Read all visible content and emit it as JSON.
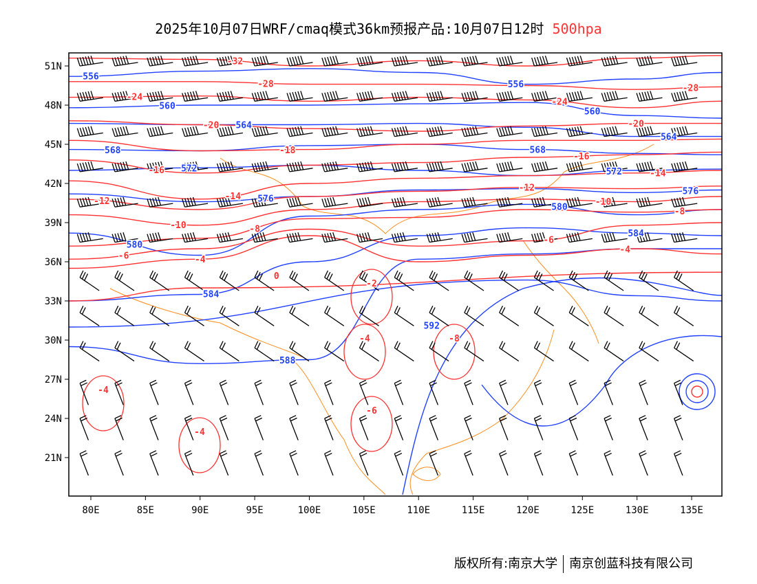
{
  "title": {
    "text": "2025年10月07日WRF/cmaq模式36km预报产品:10月07日12时",
    "level": "500hpa"
  },
  "footer": {
    "copyright": "版权所有:南京大学",
    "company": "南京创蓝科技有限公司"
  },
  "colors": {
    "height": "#2040ff",
    "temp": "#ff3030",
    "border": "#ff8c1a",
    "wind": "#000000"
  },
  "axes": {
    "lon_range": [
      78,
      138
    ],
    "lat_range": [
      18,
      52
    ],
    "lat_ticks": [
      "51N",
      "48N",
      "45N",
      "42N",
      "39N",
      "36N",
      "33N",
      "30N",
      "27N",
      "24N",
      "21N"
    ],
    "lat_values": [
      51,
      48,
      45,
      42,
      39,
      36,
      33,
      30,
      27,
      24,
      21
    ],
    "lon_ticks": [
      "80E",
      "85E",
      "90E",
      "95E",
      "100E",
      "105E",
      "110E",
      "115E",
      "120E",
      "125E",
      "130E",
      "135E"
    ],
    "lon_values": [
      80,
      85,
      90,
      95,
      100,
      105,
      110,
      115,
      120,
      125,
      130,
      135
    ]
  },
  "height_contours": {
    "lons": [
      78,
      90,
      100,
      110,
      120,
      130,
      138
    ],
    "lines": [
      {
        "value": "556",
        "lats": [
          50.2,
          50.6,
          50.8,
          50.5,
          49.6,
          50.0,
          50.5
        ]
      },
      {
        "value": "560",
        "lats": [
          47.8,
          48.0,
          48.0,
          48.1,
          48.2,
          47.2,
          47.0
        ]
      },
      {
        "value": "564",
        "lats": [
          46.6,
          46.5,
          46.5,
          46.6,
          46.3,
          45.6,
          45.6
        ]
      },
      {
        "value": "568",
        "lats": [
          44.6,
          44.5,
          44.9,
          45.0,
          44.6,
          44.3,
          44.2
        ]
      },
      {
        "value": "572",
        "lats": [
          43.0,
          43.2,
          43.4,
          43.0,
          42.6,
          43.0,
          43.1
        ]
      },
      {
        "value": "576",
        "lats": [
          41.2,
          40.6,
          41.0,
          41.5,
          41.6,
          41.3,
          41.5
        ]
      },
      {
        "value": "580",
        "lats": [
          38.2,
          36.5,
          39.5,
          40.0,
          40.4,
          39.6,
          40.0
        ]
      },
      {
        "value": "584",
        "lats": [
          33.0,
          33.5,
          36.0,
          38.0,
          38.6,
          38.2,
          38.0
        ]
      },
      {
        "value": "588",
        "lats": [
          29.5,
          28.2,
          28.5,
          36.2,
          36.6,
          37.0,
          37.0
        ]
      },
      {
        "value": "592",
        "lats": [
          null,
          null,
          null,
          31.0,
          34.6,
          33.4,
          33.0
        ]
      }
    ]
  },
  "temp_contours": {
    "lons": [
      78,
      90,
      100,
      110,
      120,
      130,
      138
    ],
    "lines": [
      {
        "value": "-32",
        "lats": [
          51.6,
          51.5,
          51.0,
          51.4,
          51.0,
          51.6,
          51.8
        ]
      },
      {
        "value": "-28",
        "lats": [
          49.8,
          49.8,
          49.6,
          49.6,
          49.5,
          49.2,
          49.4
        ]
      },
      {
        "value": "-24",
        "lats": [
          48.6,
          48.7,
          48.3,
          48.6,
          48.4,
          47.8,
          48.3
        ]
      },
      {
        "value": "-20",
        "lats": [
          46.8,
          46.5,
          46.2,
          46.0,
          46.4,
          46.6,
          46.6
        ]
      },
      {
        "value": "-18",
        "lats": [
          45.3,
          44.5,
          44.6,
          45.0,
          45.3,
          45.3,
          45.4
        ]
      },
      {
        "value": "-16",
        "lats": [
          43.8,
          42.8,
          43.4,
          43.6,
          44.0,
          44.2,
          44.4
        ]
      },
      {
        "value": "-14",
        "lats": [
          42.2,
          40.8,
          42.0,
          42.4,
          42.6,
          42.8,
          43.0
        ]
      },
      {
        "value": "-12",
        "lats": [
          40.8,
          40.0,
          41.0,
          41.4,
          41.7,
          41.6,
          41.8
        ]
      },
      {
        "value": "-10",
        "lats": [
          39.6,
          38.8,
          40.0,
          40.6,
          40.8,
          40.6,
          41.0
        ]
      },
      {
        "value": "-8",
        "lats": [
          37.2,
          37.8,
          39.3,
          39.4,
          40.0,
          39.8,
          40.0
        ]
      },
      {
        "value": "-6",
        "lats": [
          36.2,
          37.0,
          38.5,
          37.2,
          37.6,
          38.8,
          39.0
        ]
      },
      {
        "value": "-4",
        "lats": [
          35.5,
          36.2,
          38.0,
          36.0,
          36.5,
          37.0,
          36.6
        ]
      },
      {
        "value": "0",
        "lats": [
          33.0,
          34.0,
          35.2,
          null,
          null,
          null,
          null
        ]
      }
    ]
  },
  "temp_labels_extra": [
    "-2",
    "-4",
    "-6",
    "-8",
    "-4",
    "-4"
  ]
}
